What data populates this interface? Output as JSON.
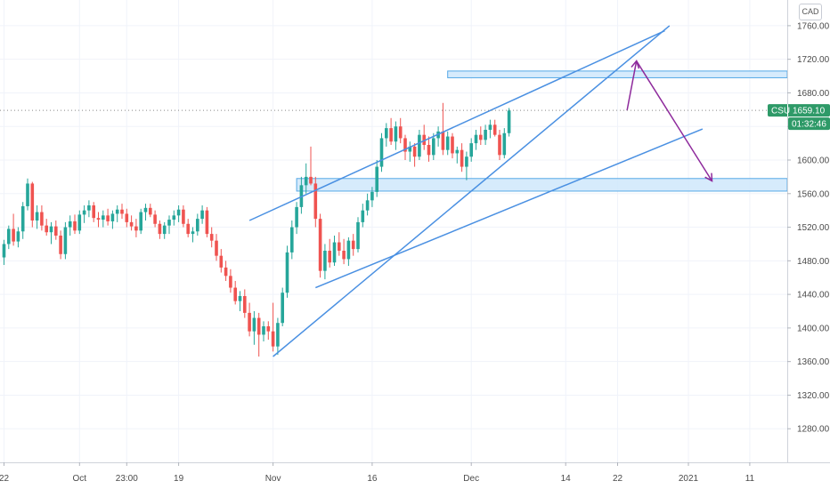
{
  "currency": "CAD",
  "price_badge": {
    "symbol": "CSU",
    "price": "1659.10",
    "countdown": "01:32:46"
  },
  "colors": {
    "up": "#26a69a",
    "down": "#ef5350",
    "trendline": "#4a90e2",
    "zone_fill": "#cfe8fb",
    "zone_stroke": "#55a8e6",
    "arrow": "#8e2a9c",
    "badge": "#2e9a68",
    "axis_bg": "#ffffff"
  },
  "chart_data": {
    "type": "candlestick",
    "yaxis": {
      "min": 1240,
      "max": 1780,
      "ticks": [
        1280,
        1320,
        1360,
        1400,
        1440,
        1480,
        1520,
        1560,
        1600,
        1640,
        1680,
        1720,
        1760
      ],
      "tick_labels": [
        "1280.00",
        "1320.00",
        "1360.00",
        "1400.00",
        "1440.00",
        "1480.00",
        "1520.00",
        "1560.00",
        "1600.00",
        "1640.00",
        "1680.00",
        "1720.00",
        "1760.00"
      ],
      "position": "right"
    },
    "xaxis": {
      "labels": [
        {
          "label": "22",
          "bar": 0
        },
        {
          "label": "Oct",
          "bar": 16
        },
        {
          "label": "23:00",
          "bar": 26
        },
        {
          "label": "19",
          "bar": 37
        },
        {
          "label": "Nov",
          "bar": 57
        },
        {
          "label": "16",
          "bar": 78
        },
        {
          "label": "Dec",
          "bar": 99
        },
        {
          "label": "14",
          "bar": 119
        },
        {
          "label": "22",
          "bar": 130
        },
        {
          "label": "2021",
          "bar": 145
        },
        {
          "label": "11",
          "bar": 158
        }
      ]
    },
    "last_price": 1659.1,
    "candles": [
      [
        1484,
        1505,
        1475,
        1500
      ],
      [
        1500,
        1522,
        1494,
        1518
      ],
      [
        1518,
        1536,
        1498,
        1503
      ],
      [
        1503,
        1520,
        1496,
        1515
      ],
      [
        1515,
        1550,
        1506,
        1545
      ],
      [
        1545,
        1578,
        1540,
        1572
      ],
      [
        1572,
        1574,
        1520,
        1528
      ],
      [
        1528,
        1546,
        1518,
        1538
      ],
      [
        1538,
        1546,
        1516,
        1522
      ],
      [
        1522,
        1530,
        1510,
        1514
      ],
      [
        1514,
        1526,
        1500,
        1521
      ],
      [
        1521,
        1528,
        1505,
        1510
      ],
      [
        1510,
        1516,
        1482,
        1488
      ],
      [
        1488,
        1526,
        1482,
        1520
      ],
      [
        1520,
        1534,
        1510,
        1527
      ],
      [
        1527,
        1535,
        1512,
        1516
      ],
      [
        1516,
        1540,
        1512,
        1535
      ],
      [
        1535,
        1546,
        1525,
        1540
      ],
      [
        1540,
        1552,
        1532,
        1546
      ],
      [
        1546,
        1550,
        1526,
        1531
      ],
      [
        1531,
        1538,
        1520,
        1529
      ],
      [
        1529,
        1540,
        1520,
        1534
      ],
      [
        1534,
        1542,
        1522,
        1527
      ],
      [
        1527,
        1540,
        1518,
        1536
      ],
      [
        1536,
        1546,
        1526,
        1541
      ],
      [
        1541,
        1548,
        1530,
        1536
      ],
      [
        1536,
        1542,
        1520,
        1526
      ],
      [
        1526,
        1534,
        1516,
        1521
      ],
      [
        1521,
        1530,
        1508,
        1516
      ],
      [
        1516,
        1542,
        1512,
        1538
      ],
      [
        1538,
        1548,
        1528,
        1543
      ],
      [
        1543,
        1548,
        1532,
        1535
      ],
      [
        1535,
        1540,
        1520,
        1524
      ],
      [
        1524,
        1528,
        1506,
        1512
      ],
      [
        1512,
        1526,
        1506,
        1522
      ],
      [
        1522,
        1534,
        1512,
        1529
      ],
      [
        1529,
        1540,
        1522,
        1534
      ],
      [
        1534,
        1546,
        1526,
        1541
      ],
      [
        1541,
        1546,
        1520,
        1524
      ],
      [
        1524,
        1530,
        1508,
        1512
      ],
      [
        1512,
        1520,
        1502,
        1515
      ],
      [
        1515,
        1536,
        1510,
        1530
      ],
      [
        1530,
        1546,
        1524,
        1540
      ],
      [
        1540,
        1544,
        1508,
        1512
      ],
      [
        1512,
        1520,
        1496,
        1504
      ],
      [
        1504,
        1512,
        1480,
        1486
      ],
      [
        1486,
        1494,
        1466,
        1472
      ],
      [
        1472,
        1480,
        1456,
        1462
      ],
      [
        1462,
        1470,
        1442,
        1448
      ],
      [
        1448,
        1456,
        1428,
        1432
      ],
      [
        1432,
        1444,
        1420,
        1438
      ],
      [
        1438,
        1446,
        1412,
        1418
      ],
      [
        1418,
        1430,
        1390,
        1396
      ],
      [
        1396,
        1420,
        1380,
        1412
      ],
      [
        1412,
        1418,
        1366,
        1392
      ],
      [
        1392,
        1408,
        1384,
        1402
      ],
      [
        1402,
        1408,
        1386,
        1396
      ],
      [
        1396,
        1430,
        1372,
        1378
      ],
      [
        1378,
        1412,
        1368,
        1406
      ],
      [
        1406,
        1448,
        1402,
        1442
      ],
      [
        1442,
        1498,
        1436,
        1490
      ],
      [
        1490,
        1528,
        1482,
        1520
      ],
      [
        1520,
        1550,
        1512,
        1544
      ],
      [
        1544,
        1580,
        1536,
        1570
      ],
      [
        1570,
        1596,
        1560,
        1580
      ],
      [
        1580,
        1616,
        1570,
        1572
      ],
      [
        1572,
        1580,
        1520,
        1530
      ],
      [
        1530,
        1536,
        1460,
        1468
      ],
      [
        1468,
        1500,
        1458,
        1492
      ],
      [
        1492,
        1506,
        1472,
        1478
      ],
      [
        1478,
        1510,
        1474,
        1502
      ],
      [
        1502,
        1514,
        1486,
        1492
      ],
      [
        1492,
        1506,
        1476,
        1482
      ],
      [
        1482,
        1508,
        1474,
        1504
      ],
      [
        1504,
        1512,
        1486,
        1494
      ],
      [
        1494,
        1532,
        1490,
        1526
      ],
      [
        1526,
        1548,
        1520,
        1540
      ],
      [
        1540,
        1560,
        1534,
        1552
      ],
      [
        1552,
        1568,
        1544,
        1562
      ],
      [
        1562,
        1600,
        1556,
        1592
      ],
      [
        1592,
        1632,
        1586,
        1626
      ],
      [
        1626,
        1644,
        1616,
        1638
      ],
      [
        1638,
        1650,
        1618,
        1622
      ],
      [
        1622,
        1646,
        1612,
        1640
      ],
      [
        1640,
        1650,
        1620,
        1626
      ],
      [
        1626,
        1630,
        1600,
        1610
      ],
      [
        1610,
        1622,
        1598,
        1616
      ],
      [
        1616,
        1620,
        1592,
        1604
      ],
      [
        1604,
        1636,
        1600,
        1630
      ],
      [
        1630,
        1642,
        1612,
        1618
      ],
      [
        1618,
        1628,
        1598,
        1606
      ],
      [
        1606,
        1632,
        1600,
        1626
      ],
      [
        1626,
        1640,
        1616,
        1634
      ],
      [
        1634,
        1668,
        1606,
        1612
      ],
      [
        1612,
        1634,
        1606,
        1628
      ],
      [
        1628,
        1632,
        1602,
        1608
      ],
      [
        1608,
        1616,
        1596,
        1612
      ],
      [
        1612,
        1620,
        1586,
        1592
      ],
      [
        1592,
        1610,
        1576,
        1604
      ],
      [
        1604,
        1626,
        1598,
        1620
      ],
      [
        1620,
        1636,
        1612,
        1630
      ],
      [
        1630,
        1640,
        1618,
        1624
      ],
      [
        1624,
        1642,
        1618,
        1636
      ],
      [
        1636,
        1648,
        1626,
        1642
      ],
      [
        1642,
        1648,
        1628,
        1630
      ],
      [
        1630,
        1636,
        1600,
        1606
      ],
      [
        1606,
        1638,
        1602,
        1632
      ],
      [
        1632,
        1662,
        1628,
        1659
      ]
    ],
    "drawings": {
      "zones": [
        {
          "name": "resistance-zone",
          "bar_start": 94,
          "y_top": 1706,
          "y_bottom": 1698
        },
        {
          "name": "support-zone",
          "bar_start": 62,
          "y_top": 1578,
          "y_bottom": 1563
        }
      ],
      "trendlines": [
        {
          "name": "channel-upper-line",
          "from": [
            52,
            1528
          ],
          "to": [
            140,
            1754
          ]
        },
        {
          "name": "channel-lower-line",
          "from": [
            66,
            1448
          ],
          "to": [
            148,
            1637
          ]
        },
        {
          "name": "rising-wedge-line",
          "from": [
            57,
            1366
          ],
          "to": [
            141,
            1760
          ]
        }
      ],
      "arrows": [
        {
          "name": "projection-arrow-up",
          "from": [
            132,
            1659
          ],
          "to": [
            134,
            1718
          ]
        },
        {
          "name": "projection-arrow-down",
          "from": [
            134,
            1718
          ],
          "to": [
            150,
            1575
          ]
        }
      ]
    }
  }
}
